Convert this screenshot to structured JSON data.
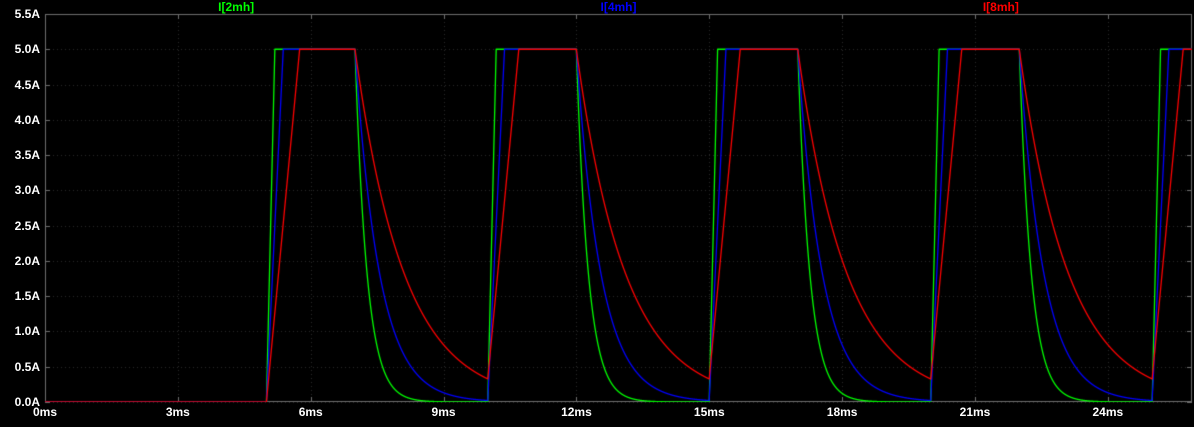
{
  "window": {
    "background": "#000000"
  },
  "chart_data": {
    "type": "line",
    "title": "",
    "xlabel": "",
    "ylabel": "",
    "x_unit": "ms",
    "y_unit": "A",
    "x_range": [
      0,
      25.9
    ],
    "y_range": [
      0,
      5.5
    ],
    "grid": true,
    "legend_position": "top",
    "x_ticks": {
      "values": [
        0,
        3,
        6,
        9,
        12,
        15,
        18,
        21,
        24
      ],
      "labels": [
        "0ms",
        "3ms",
        "6ms",
        "9ms",
        "12ms",
        "15ms",
        "18ms",
        "21ms",
        "24ms"
      ]
    },
    "y_ticks": {
      "values": [
        5.5,
        5.0,
        4.5,
        4.0,
        3.5,
        3.0,
        2.5,
        2.0,
        1.5,
        1.0,
        0.5,
        0.0
      ],
      "labels": [
        "5.5A",
        "5.0A",
        "4.5A",
        "4.0A",
        "3.5A",
        "3.0A",
        "2.5A",
        "2.0A",
        "1.5A",
        "1.0A",
        "0.5A",
        "0.0A"
      ]
    },
    "pulse": {
      "amplitude_A": 5.0,
      "initial_A": 0.0,
      "start_ms": 5.0,
      "period_ms": 5.0,
      "on_ms": 2.0
    },
    "series": [
      {
        "name": "I[2mh]",
        "color": "#00ff00",
        "rise_ms": 0.19,
        "decay_tau_ms": 0.27
      },
      {
        "name": "I[4mh]",
        "color": "#0000ff",
        "rise_ms": 0.38,
        "decay_tau_ms": 0.55
      },
      {
        "name": "I[8mh]",
        "color": "#ff0000",
        "rise_ms": 0.75,
        "decay_tau_ms": 1.1
      }
    ],
    "colors": {
      "grid": "#2a2a2a",
      "frame": "#6e6e6e",
      "tick_text": "#ffffff"
    }
  }
}
